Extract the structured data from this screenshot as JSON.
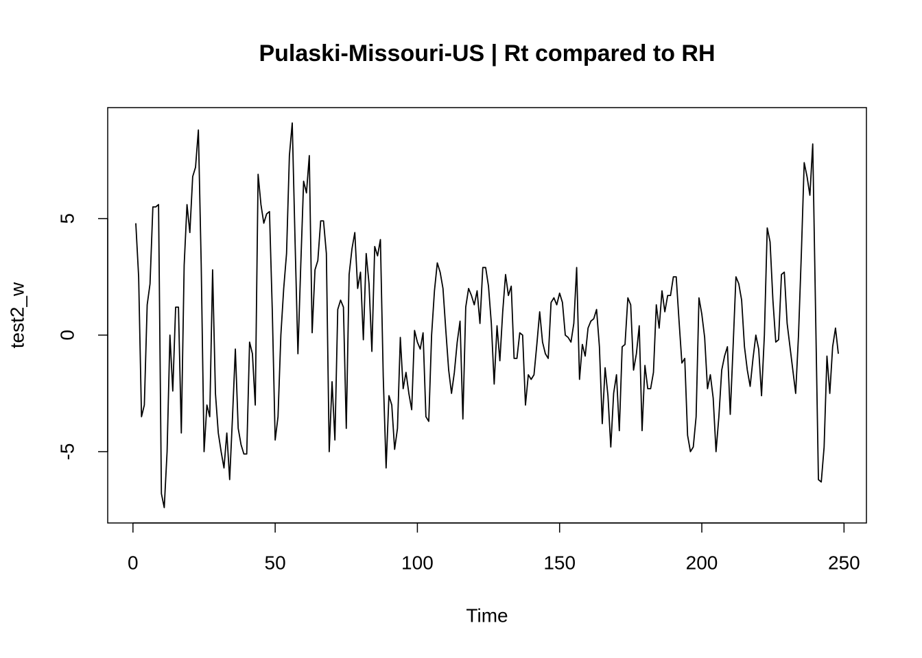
{
  "chart_data": {
    "type": "line",
    "title": "Pulaski-Missouri-US | Rt compared to RH",
    "xlabel": "Time",
    "ylabel": "test2_w",
    "color": "#000000",
    "x": [
      1,
      2,
      3,
      4,
      5,
      6,
      7,
      8,
      9,
      10,
      11,
      12,
      13,
      14,
      15,
      16,
      17,
      18,
      19,
      20,
      21,
      22,
      23,
      24,
      25,
      26,
      27,
      28,
      29,
      30,
      31,
      32,
      33,
      34,
      35,
      36,
      37,
      38,
      39,
      40,
      41,
      42,
      43,
      44,
      45,
      46,
      47,
      48,
      49,
      50,
      51,
      52,
      53,
      54,
      55,
      56,
      57,
      58,
      59,
      60,
      61,
      62,
      63,
      64,
      65,
      66,
      67,
      68,
      69,
      70,
      71,
      72,
      73,
      74,
      75,
      76,
      77,
      78,
      79,
      80,
      81,
      82,
      83,
      84,
      85,
      86,
      87,
      88,
      89,
      90,
      91,
      92,
      93,
      94,
      95,
      96,
      97,
      98,
      99,
      100,
      101,
      102,
      103,
      104,
      105,
      106,
      107,
      108,
      109,
      110,
      111,
      112,
      113,
      114,
      115,
      116,
      117,
      118,
      119,
      120,
      121,
      122,
      123,
      124,
      125,
      126,
      127,
      128,
      129,
      130,
      131,
      132,
      133,
      134,
      135,
      136,
      137,
      138,
      139,
      140,
      141,
      142,
      143,
      144,
      145,
      146,
      147,
      148,
      149,
      150,
      151,
      152,
      153,
      154,
      155,
      156,
      157,
      158,
      159,
      160,
      161,
      162,
      163,
      164,
      165,
      166,
      167,
      168,
      169,
      170,
      171,
      172,
      173,
      174,
      175,
      176,
      177,
      178,
      179,
      180,
      181,
      182,
      183,
      184,
      185,
      186,
      187,
      188,
      189,
      190,
      191,
      192,
      193,
      194,
      195,
      196,
      197,
      198,
      199,
      200,
      201,
      202,
      203,
      204,
      205,
      206,
      207,
      208,
      209,
      210,
      211,
      212,
      213,
      214,
      215,
      216,
      217,
      218,
      219,
      220,
      221,
      222,
      223,
      224,
      225,
      226,
      227,
      228,
      229,
      230,
      231,
      232,
      233,
      234,
      235,
      236,
      237,
      238,
      239,
      240,
      241,
      242,
      243,
      244,
      245,
      246,
      247,
      248
    ],
    "values": [
      4.8,
      2.5,
      -3.5,
      -3,
      1.3,
      2.2,
      5.5,
      5.5,
      5.6,
      -6.8,
      -7.4,
      -5,
      0,
      -2.4,
      1.2,
      1.2,
      -4.2,
      3,
      5.6,
      4.4,
      6.8,
      7.2,
      8.8,
      3,
      -5,
      -3,
      -3.5,
      2.8,
      -2.5,
      -4.2,
      -5,
      -5.7,
      -4.2,
      -6.2,
      -3.5,
      -0.6,
      -4,
      -4.7,
      -5.1,
      -5.1,
      -0.3,
      -0.8,
      -3,
      6.9,
      5.6,
      4.8,
      5.2,
      5.3,
      1,
      -4.5,
      -3.5,
      0,
      2,
      3.5,
      7.7,
      9.1,
      4,
      -0.8,
      3,
      6.6,
      6.1,
      7.7,
      0.1,
      2.8,
      3.2,
      4.9,
      4.9,
      3.5,
      -5,
      -2,
      -4.5,
      1.1,
      1.5,
      1.2,
      -4,
      2.6,
      3.7,
      4.4,
      2,
      2.7,
      -0.2,
      3.5,
      2.2,
      -0.7,
      3.8,
      3.4,
      4.1,
      -1.8,
      -5.7,
      -2.6,
      -3,
      -4.9,
      -4,
      -0.1,
      -2.3,
      -1.6,
      -2.5,
      -3.2,
      0.2,
      -0.3,
      -0.6,
      0.1,
      -3.5,
      -3.7,
      0,
      1.9,
      3.1,
      2.7,
      2,
      0.2,
      -1.5,
      -2.5,
      -1.6,
      -0.3,
      0.6,
      -3.6,
      1.2,
      2,
      1.7,
      1.3,
      1.9,
      0.5,
      2.9,
      2.9,
      2.1,
      0.5,
      -2.1,
      0.4,
      -1.1,
      1,
      2.6,
      1.7,
      2.1,
      -1,
      -1,
      0.1,
      0,
      -3,
      -1.7,
      -1.9,
      -1.7,
      -0.4,
      1,
      -0.3,
      -0.8,
      -1,
      1.4,
      1.6,
      1.3,
      1.8,
      1.4,
      0,
      -0.1,
      -0.3,
      0.5,
      2.9,
      -1.9,
      -0.4,
      -0.9,
      0.3,
      0.6,
      0.7,
      1.1,
      -0.5,
      -3.8,
      -1.4,
      -2.6,
      -4.8,
      -2.5,
      -1.7,
      -4.1,
      -0.5,
      -0.4,
      1.6,
      1.3,
      -1.5,
      -0.8,
      0.4,
      -4.1,
      -1.3,
      -2.3,
      -2.3,
      -1.6,
      1.3,
      0.3,
      1.9,
      1,
      1.7,
      1.7,
      2.5,
      2.5,
      0.6,
      -1.2,
      -1,
      -4.3,
      -5,
      -4.8,
      -3.5,
      1.6,
      0.9,
      -0.1,
      -2.3,
      -1.7,
      -2.7,
      -5,
      -3.5,
      -1.5,
      -0.9,
      -0.5,
      -3.4,
      -0.5,
      2.5,
      2.2,
      1.5,
      -0.5,
      -1.5,
      -2.2,
      -1,
      0,
      -0.6,
      -2.6,
      0,
      4.6,
      4,
      1.5,
      -0.3,
      -0.2,
      2.6,
      2.7,
      0.5,
      -0.5,
      -1.5,
      -2.5,
      0,
      3.5,
      7.4,
      6.8,
      6,
      8.2,
      1,
      -6.2,
      -6.3,
      -4.8,
      -0.9,
      -2.5,
      -0.5,
      0.3,
      -0.8
    ],
    "xlim": [
      -8.88,
      257.88
    ],
    "xticks": [
      0,
      50,
      100,
      150,
      200,
      250
    ],
    "ylim": [
      -8.06,
      9.76
    ],
    "yticks": [
      -5,
      0,
      5
    ]
  }
}
